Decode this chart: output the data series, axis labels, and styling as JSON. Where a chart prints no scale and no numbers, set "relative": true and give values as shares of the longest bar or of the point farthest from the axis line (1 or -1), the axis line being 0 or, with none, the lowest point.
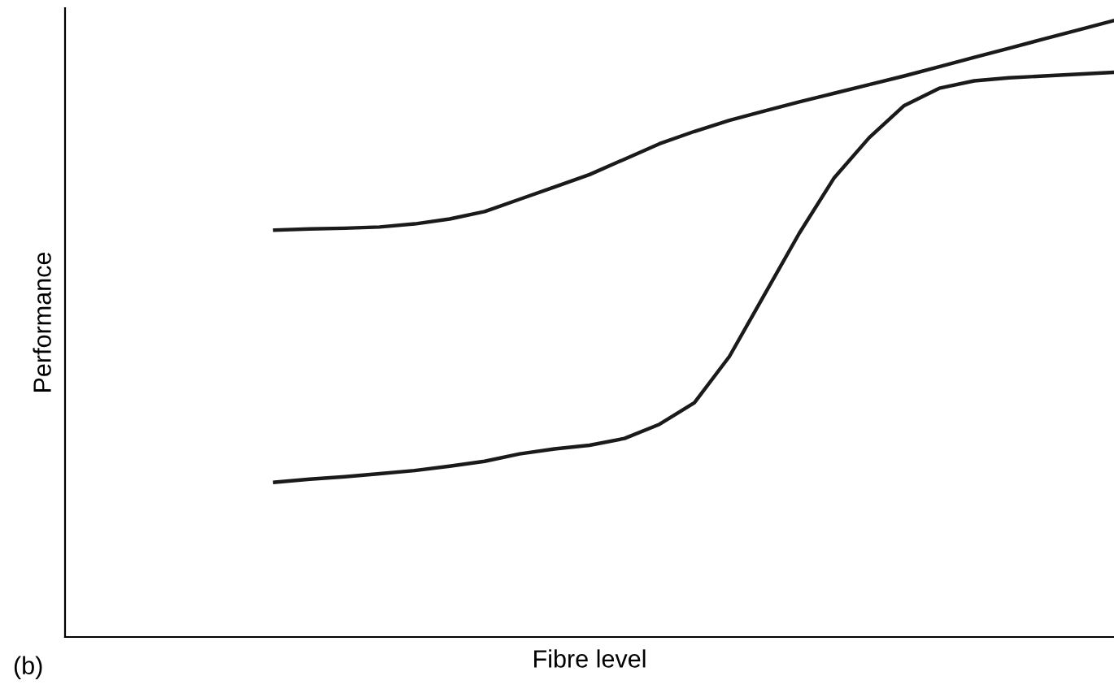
{
  "chart_data": {
    "type": "line",
    "relative": true,
    "xlabel": "Fibre level",
    "ylabel": "Performance",
    "annotations": [
      "(b)"
    ],
    "grid": false,
    "legend": false,
    "marker": "none",
    "line_style": "solid",
    "categories": [
      null,
      null,
      null,
      null,
      null,
      null,
      null,
      null,
      null,
      null,
      null,
      null,
      null,
      null,
      null,
      null,
      null,
      null,
      null,
      null,
      null,
      null,
      null,
      null,
      null,
      null,
      null,
      null,
      null,
      null,
      null
    ],
    "series": [
      {
        "color": "#1a1a1a",
        "values": [
          null,
          null,
          null,
          null,
          null,
          null,
          0.66,
          0.662,
          0.663,
          0.665,
          0.67,
          0.678,
          0.69,
          0.71,
          0.73,
          0.75,
          0.775,
          0.8,
          0.82,
          0.838,
          0.853,
          0.868,
          0.882,
          0.896,
          0.91,
          0.925,
          0.94,
          0.955,
          0.97,
          0.985,
          1
        ]
      },
      {
        "color": "#1a1a1a",
        "values": [
          null,
          null,
          null,
          null,
          null,
          null,
          0.251,
          0.256,
          0.26,
          0.265,
          0.27,
          0.277,
          0.285,
          0.297,
          0.305,
          0.311,
          0.322,
          0.345,
          0.38,
          0.455,
          0.555,
          0.655,
          0.745,
          0.81,
          0.862,
          0.89,
          0.902,
          0.907,
          0.91,
          0.913,
          0.916
        ]
      }
    ]
  }
}
